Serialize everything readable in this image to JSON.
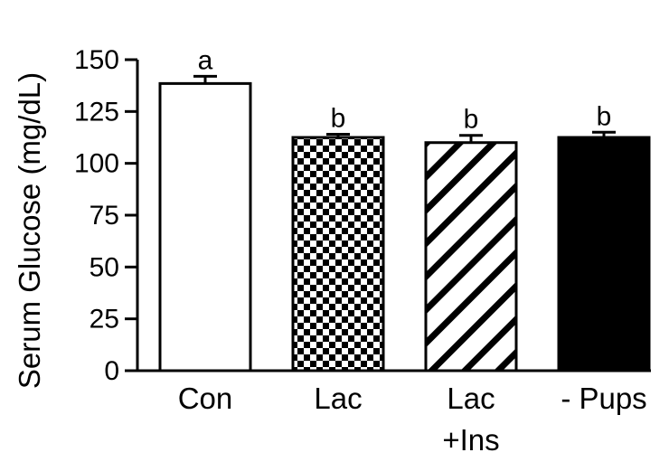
{
  "chart_data": {
    "type": "bar",
    "title": "",
    "xlabel": "",
    "ylabel": "Serum Glucose (mg/dL)",
    "ylim": [
      0,
      150
    ],
    "yticks": [
      0,
      25,
      50,
      75,
      100,
      125,
      150
    ],
    "categories": [
      [
        "Con"
      ],
      [
        "Lac"
      ],
      [
        "Lac",
        "+Ins"
      ],
      [
        "- Pups"
      ]
    ],
    "values": [
      138.5,
      112.5,
      110,
      112.5
    ],
    "errors": [
      3.5,
      1.5,
      3.5,
      2.5
    ],
    "significance": [
      "a",
      "b",
      "b",
      "b"
    ],
    "fills": [
      "white",
      "checker",
      "diagonal-hatch",
      "solid-black"
    ],
    "bar_color": "#000000",
    "grid": false,
    "legend": "none"
  }
}
